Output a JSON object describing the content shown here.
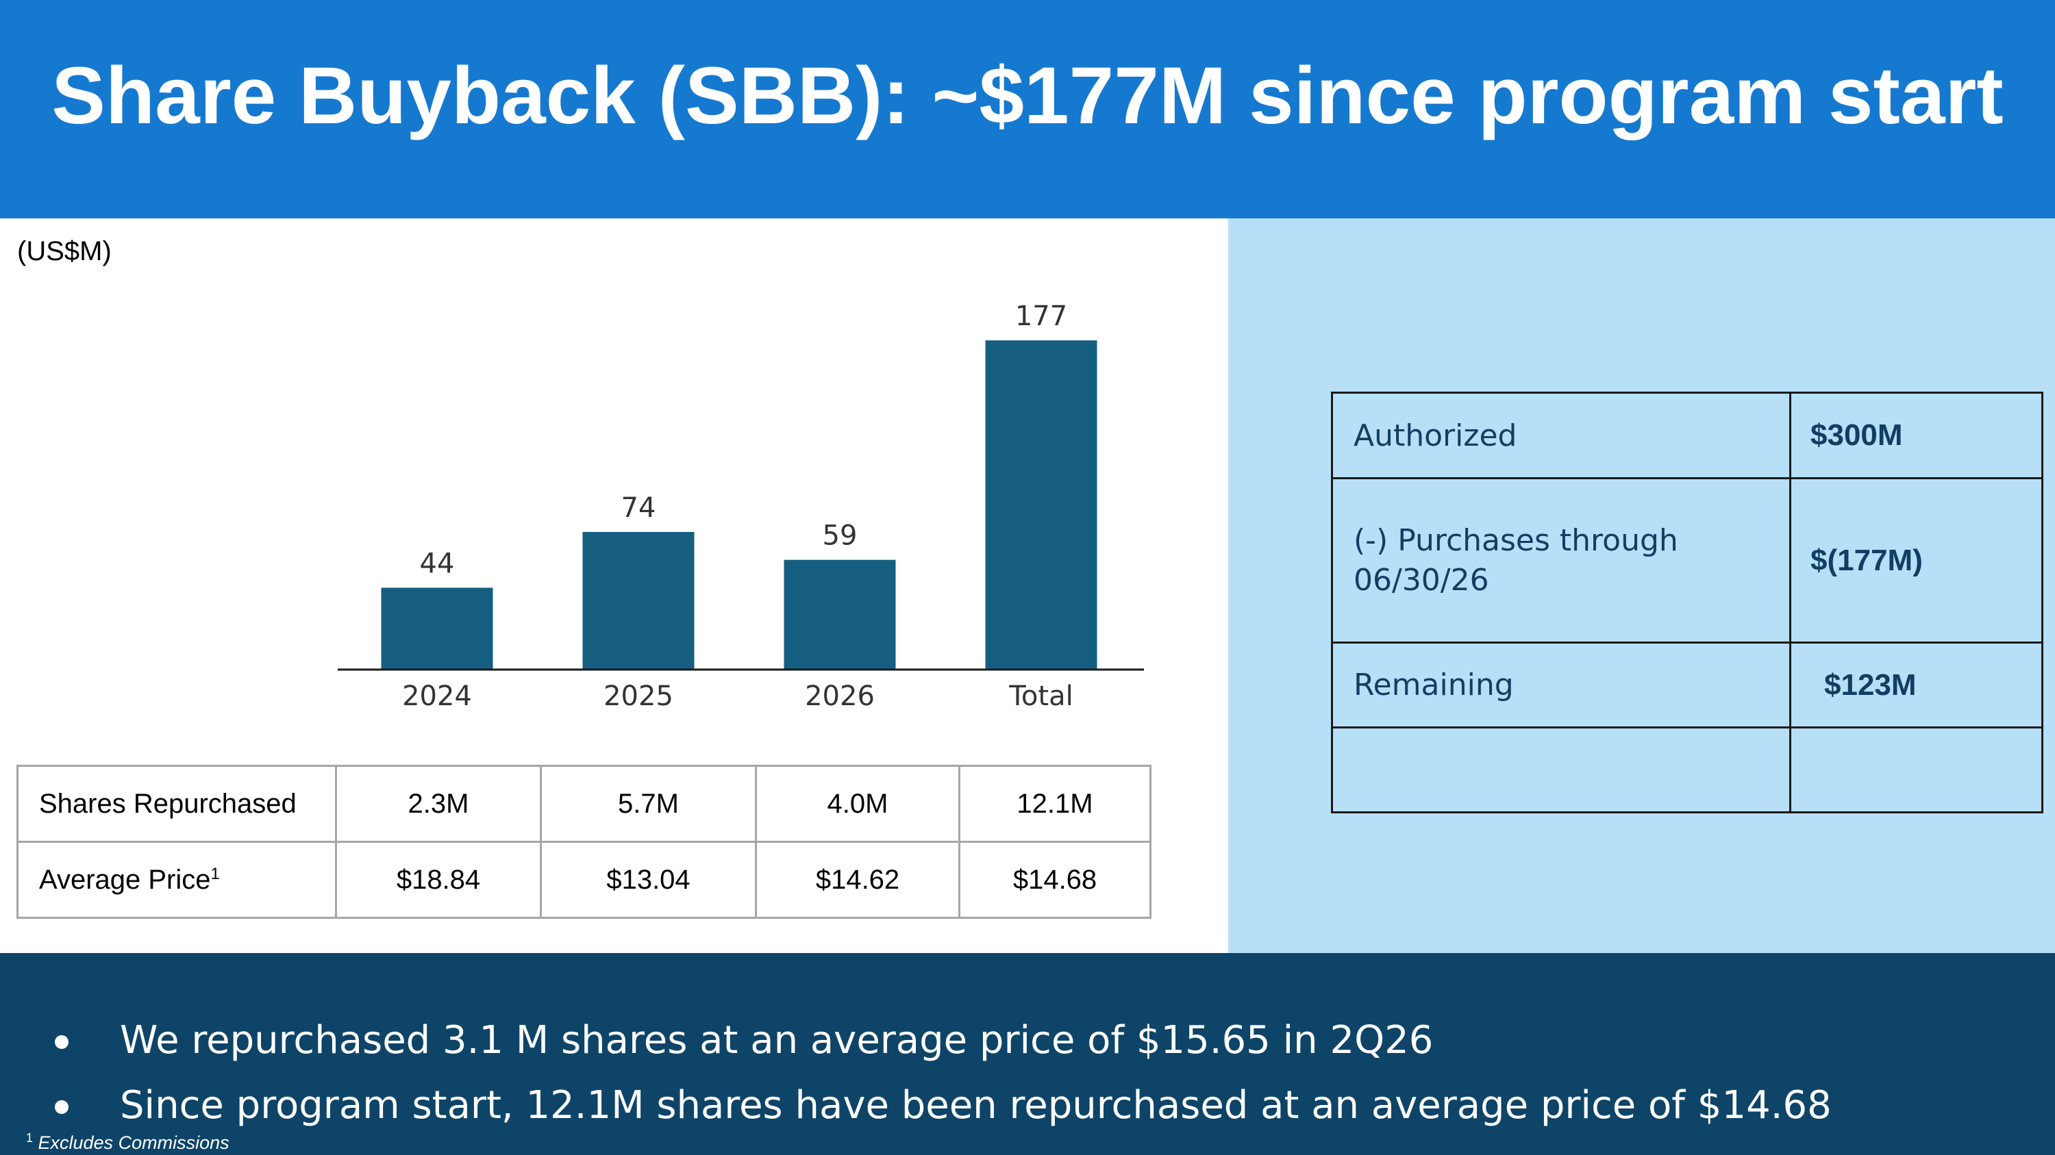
{
  "header": {
    "title": "Share Buyback (SBB): ~$177M since program start"
  },
  "units_label": "(US$M)",
  "chart_data": {
    "type": "bar",
    "categories": [
      "2024",
      "2025",
      "2026",
      "Total"
    ],
    "values": [
      44,
      74,
      59,
      177
    ],
    "data_labels": [
      "44",
      "74",
      "59",
      "177"
    ],
    "title": "",
    "xlabel": "",
    "ylabel": "(US$M)",
    "ylim": [
      0,
      180
    ],
    "grid": false,
    "legend": "none",
    "bar_color": "#155e80"
  },
  "stats_table": {
    "rows": [
      {
        "label": "Shares Repurchased",
        "sup": "",
        "values": [
          "2.3M",
          "5.7M",
          "4.0M",
          "12.1M"
        ]
      },
      {
        "label": "Average Price",
        "sup": "1",
        "values": [
          "$18.84",
          "$13.04",
          "$14.62",
          "$14.68"
        ]
      }
    ]
  },
  "authorization": {
    "rows": [
      {
        "label": "Authorized",
        "value": "$300M"
      },
      {
        "label": "(-)  Purchases through 06/30/26",
        "value": "$(177M)"
      },
      {
        "label": "Remaining",
        "value": "$123M"
      },
      {
        "label": "",
        "value": ""
      }
    ]
  },
  "bullets": [
    "We repurchased 3.1 M shares at an average price of $15.65 in 2Q26",
    "Since program start, 12.1M shares have been repurchased at an average price of $14.68"
  ],
  "footnote": {
    "marker": "1",
    "text": "Excludes Commissions"
  },
  "colors": {
    "header_bg": "#1679d0",
    "panel_bg": "#b7dff7",
    "footer_bg": "#0e4468",
    "bar": "#155e80",
    "table_text": "#123e63"
  }
}
